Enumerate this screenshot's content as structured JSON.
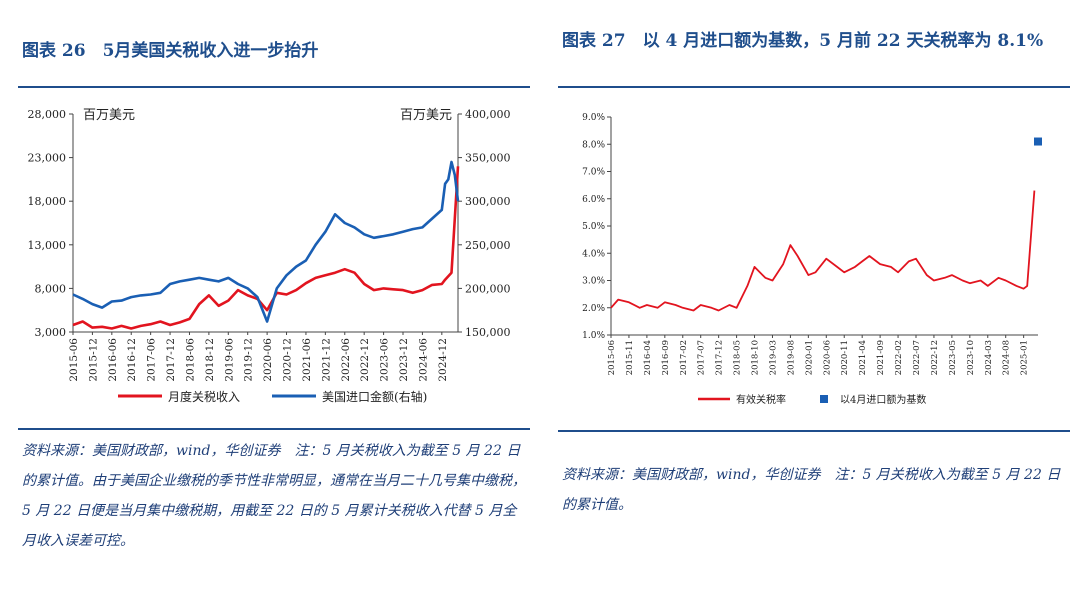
{
  "left": {
    "title": "图表 26　5月美国关税收入进一步抬升",
    "source": "资料来源：美国财政部，wind，华创证券　注：5 月关税收入为截至 5 月 22 日的累计值。由于美国企业缴税的季节性非常明显，通常在当月二十几号集中缴税，5 月 22 日便是当月集中缴税期，用截至 22 日的 5 月累计关税收入代替 5 月全月收入误差可控。"
  },
  "right": {
    "title": "图表 27　以 4 月进口额为基数，5 月前 22 天关税率为 8.1%",
    "source": "资料来源：美国财政部，wind，华创证券　注：5 月关税收入为截至 5 月 22 日的累计值。"
  },
  "chart_data": [
    {
      "type": "line",
      "ylabel_left": "百万美元",
      "ylabel_right": "百万美元",
      "ylim_left": [
        3000,
        28000
      ],
      "ylim_right": [
        150000,
        400000
      ],
      "yticks_left": [
        "3,000",
        "8,000",
        "13,000",
        "18,000",
        "23,000",
        "28,000"
      ],
      "yticks_right": [
        "150,000",
        "200,000",
        "250,000",
        "300,000",
        "350,000",
        "400,000"
      ],
      "xticks": [
        "2015-06",
        "2015-12",
        "2016-06",
        "2016-12",
        "2017-06",
        "2017-12",
        "2018-06",
        "2018-12",
        "2019-06",
        "2019-12",
        "2020-06",
        "2020-12",
        "2021-06",
        "2021-12",
        "2022-06",
        "2022-12",
        "2023-06",
        "2023-12",
        "2024-06",
        "2024-12"
      ],
      "x_start": "2015-06",
      "x_end": "2025-05",
      "legend": "bottom",
      "series": [
        {
          "name": "月度关税收入",
          "color": "#e2141f",
          "axis": "left",
          "points": [
            [
              "2015-06",
              3800
            ],
            [
              "2015-09",
              4200
            ],
            [
              "2015-12",
              3500
            ],
            [
              "2016-03",
              3600
            ],
            [
              "2016-06",
              3400
            ],
            [
              "2016-09",
              3700
            ],
            [
              "2016-12",
              3400
            ],
            [
              "2017-03",
              3700
            ],
            [
              "2017-06",
              3900
            ],
            [
              "2017-09",
              4200
            ],
            [
              "2017-12",
              3800
            ],
            [
              "2018-03",
              4100
            ],
            [
              "2018-06",
              4500
            ],
            [
              "2018-09",
              6200
            ],
            [
              "2018-12",
              7200
            ],
            [
              "2019-03",
              6000
            ],
            [
              "2019-06",
              6600
            ],
            [
              "2019-09",
              7800
            ],
            [
              "2019-12",
              7200
            ],
            [
              "2020-03",
              6800
            ],
            [
              "2020-06",
              5500
            ],
            [
              "2020-09",
              7500
            ],
            [
              "2020-12",
              7300
            ],
            [
              "2021-03",
              7800
            ],
            [
              "2021-06",
              8600
            ],
            [
              "2021-09",
              9200
            ],
            [
              "2021-12",
              9500
            ],
            [
              "2022-03",
              9800
            ],
            [
              "2022-06",
              10200
            ],
            [
              "2022-09",
              9800
            ],
            [
              "2022-12",
              8500
            ],
            [
              "2023-03",
              7800
            ],
            [
              "2023-06",
              8000
            ],
            [
              "2023-09",
              7900
            ],
            [
              "2023-12",
              7800
            ],
            [
              "2024-03",
              7500
            ],
            [
              "2024-06",
              7800
            ],
            [
              "2024-09",
              8400
            ],
            [
              "2024-12",
              8500
            ],
            [
              "2025-01",
              9000
            ],
            [
              "2025-03",
              9800
            ],
            [
              "2025-04",
              16000
            ],
            [
              "2025-05",
              22000
            ]
          ]
        },
        {
          "name": "美国进口金额(右轴)",
          "color": "#1a5fb4",
          "axis": "right",
          "points": [
            [
              "2015-06",
              193000
            ],
            [
              "2015-09",
              188000
            ],
            [
              "2015-12",
              182000
            ],
            [
              "2016-03",
              178000
            ],
            [
              "2016-06",
              185000
            ],
            [
              "2016-09",
              186000
            ],
            [
              "2016-12",
              190000
            ],
            [
              "2017-03",
              192000
            ],
            [
              "2017-06",
              193000
            ],
            [
              "2017-09",
              195000
            ],
            [
              "2017-12",
              205000
            ],
            [
              "2018-03",
              208000
            ],
            [
              "2018-06",
              210000
            ],
            [
              "2018-09",
              212000
            ],
            [
              "2018-12",
              210000
            ],
            [
              "2019-03",
              208000
            ],
            [
              "2019-06",
              212000
            ],
            [
              "2019-09",
              205000
            ],
            [
              "2019-12",
              200000
            ],
            [
              "2020-03",
              190000
            ],
            [
              "2020-06",
              162000
            ],
            [
              "2020-09",
              200000
            ],
            [
              "2020-12",
              215000
            ],
            [
              "2021-03",
              225000
            ],
            [
              "2021-06",
              232000
            ],
            [
              "2021-09",
              250000
            ],
            [
              "2021-12",
              265000
            ],
            [
              "2022-03",
              285000
            ],
            [
              "2022-06",
              275000
            ],
            [
              "2022-09",
              270000
            ],
            [
              "2022-12",
              262000
            ],
            [
              "2023-03",
              258000
            ],
            [
              "2023-06",
              260000
            ],
            [
              "2023-09",
              262000
            ],
            [
              "2023-12",
              265000
            ],
            [
              "2024-03",
              268000
            ],
            [
              "2024-06",
              270000
            ],
            [
              "2024-09",
              280000
            ],
            [
              "2024-12",
              290000
            ],
            [
              "2025-01",
              320000
            ],
            [
              "2025-02",
              325000
            ],
            [
              "2025-03",
              345000
            ],
            [
              "2025-04",
              330000
            ],
            [
              "2025-05",
              300000
            ]
          ]
        }
      ]
    },
    {
      "type": "line",
      "ylim": [
        1.0,
        9.0
      ],
      "yticks": [
        "1.0%",
        "2.0%",
        "3.0%",
        "4.0%",
        "5.0%",
        "6.0%",
        "7.0%",
        "8.0%",
        "9.0%"
      ],
      "xticks": [
        "2015-06",
        "2015-11",
        "2016-04",
        "2016-09",
        "2017-02",
        "2017-07",
        "2017-12",
        "2018-05",
        "2018-10",
        "2019-03",
        "2019-08",
        "2020-01",
        "2020-06",
        "2020-11",
        "2021-04",
        "2021-09",
        "2022-02",
        "2022-07",
        "2022-12",
        "2023-05",
        "2023-10",
        "2024-03",
        "2024-08",
        "2025-01"
      ],
      "x_start": "2015-06",
      "x_end": "2025-05",
      "legend": "bottom",
      "series": [
        {
          "name": "有效关税率",
          "color": "#e2141f",
          "points": [
            [
              "2015-06",
              2.0
            ],
            [
              "2015-08",
              2.3
            ],
            [
              "2015-11",
              2.2
            ],
            [
              "2016-02",
              2.0
            ],
            [
              "2016-04",
              2.1
            ],
            [
              "2016-07",
              2.0
            ],
            [
              "2016-09",
              2.2
            ],
            [
              "2016-12",
              2.1
            ],
            [
              "2017-02",
              2.0
            ],
            [
              "2017-05",
              1.9
            ],
            [
              "2017-07",
              2.1
            ],
            [
              "2017-10",
              2.0
            ],
            [
              "2017-12",
              1.9
            ],
            [
              "2018-03",
              2.1
            ],
            [
              "2018-05",
              2.0
            ],
            [
              "2018-08",
              2.8
            ],
            [
              "2018-10",
              3.5
            ],
            [
              "2019-01",
              3.1
            ],
            [
              "2019-03",
              3.0
            ],
            [
              "2019-06",
              3.6
            ],
            [
              "2019-08",
              4.3
            ],
            [
              "2019-10",
              3.9
            ],
            [
              "2020-01",
              3.2
            ],
            [
              "2020-03",
              3.3
            ],
            [
              "2020-06",
              3.8
            ],
            [
              "2020-09",
              3.5
            ],
            [
              "2020-11",
              3.3
            ],
            [
              "2021-02",
              3.5
            ],
            [
              "2021-04",
              3.7
            ],
            [
              "2021-06",
              3.9
            ],
            [
              "2021-09",
              3.6
            ],
            [
              "2021-12",
              3.5
            ],
            [
              "2022-02",
              3.3
            ],
            [
              "2022-05",
              3.7
            ],
            [
              "2022-07",
              3.8
            ],
            [
              "2022-10",
              3.2
            ],
            [
              "2022-12",
              3.0
            ],
            [
              "2023-03",
              3.1
            ],
            [
              "2023-05",
              3.2
            ],
            [
              "2023-08",
              3.0
            ],
            [
              "2023-10",
              2.9
            ],
            [
              "2024-01",
              3.0
            ],
            [
              "2024-03",
              2.8
            ],
            [
              "2024-06",
              3.1
            ],
            [
              "2024-08",
              3.0
            ],
            [
              "2024-11",
              2.8
            ],
            [
              "2025-01",
              2.7
            ],
            [
              "2025-02",
              2.8
            ],
            [
              "2025-04",
              6.3
            ]
          ]
        },
        {
          "name": "以4月进口额为基数",
          "color": "#1a5fb4",
          "marker": "square",
          "points": [
            [
              "2025-05",
              8.1
            ]
          ]
        }
      ]
    }
  ]
}
